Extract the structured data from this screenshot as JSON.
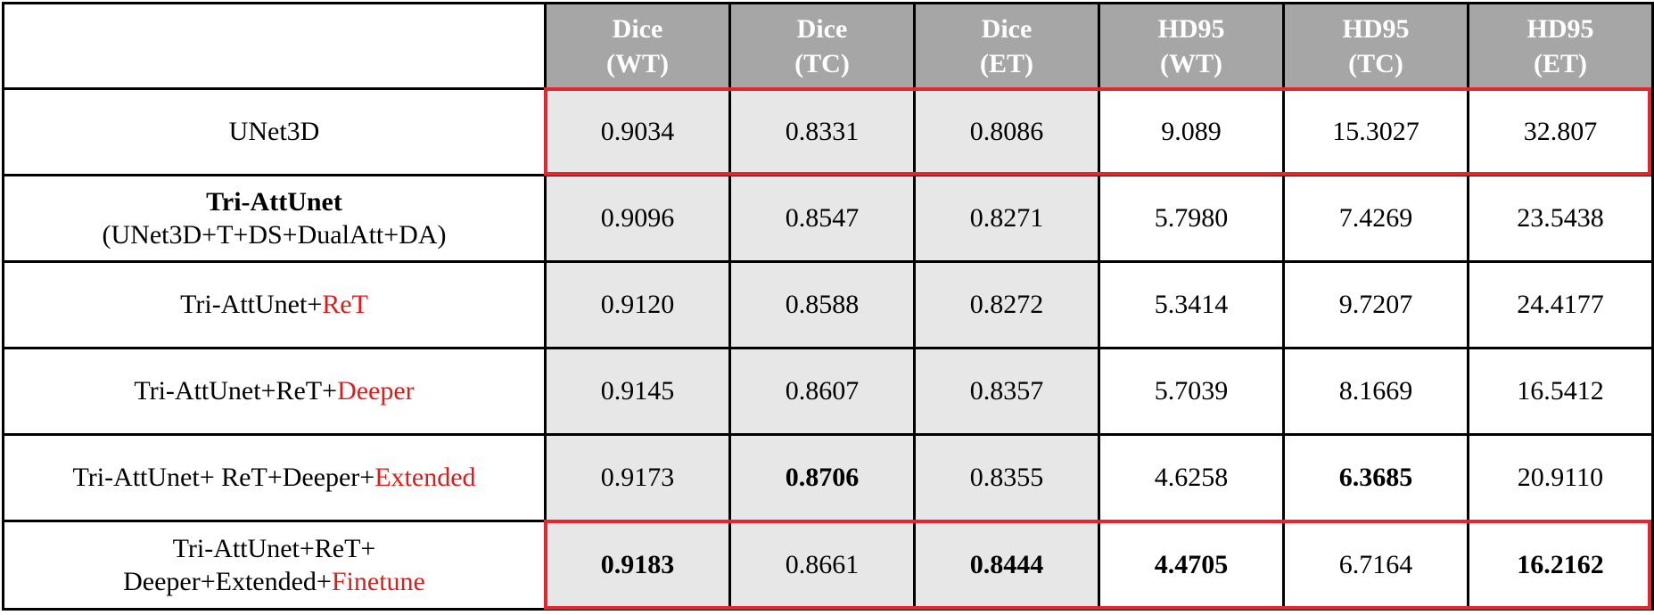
{
  "table": {
    "headers": [
      {
        "line1": "Dice",
        "line2": "(WT)"
      },
      {
        "line1": "Dice",
        "line2": "(TC)"
      },
      {
        "line1": "Dice",
        "line2": "(ET)"
      },
      {
        "line1": "HD95",
        "line2": "(WT)"
      },
      {
        "line1": "HD95",
        "line2": "(TC)"
      },
      {
        "line1": "HD95",
        "line2": "(ET)"
      }
    ],
    "rows": [
      {
        "method_parts": [
          {
            "text": "UNet3D",
            "style": "normal"
          }
        ],
        "values": [
          "0.9034",
          "0.8331",
          "0.8086",
          "9.089",
          "15.3027",
          "32.807"
        ],
        "bold": [
          false,
          false,
          false,
          false,
          false,
          false
        ]
      },
      {
        "method_line1": "Tri-AttUnet",
        "method_line2": "(UNet3D+T+DS+DualAtt+DA)",
        "values": [
          "0.9096",
          "0.8547",
          "0.8271",
          "5.7980",
          "7.4269",
          "23.5438"
        ],
        "bold": [
          false,
          false,
          false,
          false,
          false,
          false
        ]
      },
      {
        "method_prefix": "Tri-AttUnet+",
        "method_highlight": "ReT",
        "values": [
          "0.9120",
          "0.8588",
          "0.8272",
          "5.3414",
          "9.7207",
          "24.4177"
        ],
        "bold": [
          false,
          false,
          false,
          false,
          false,
          false
        ]
      },
      {
        "method_prefix": "Tri-AttUnet+ReT+",
        "method_highlight": "Deeper",
        "values": [
          "0.9145",
          "0.8607",
          "0.8357",
          "5.7039",
          "8.1669",
          "16.5412"
        ],
        "bold": [
          false,
          false,
          false,
          false,
          false,
          false
        ]
      },
      {
        "method_prefix": "Tri-AttUnet+ ReT+Deeper+",
        "method_highlight": "Extended",
        "values": [
          "0.9173",
          "0.8706",
          "0.8355",
          "4.6258",
          "6.3685",
          "20.9110"
        ],
        "bold": [
          false,
          true,
          false,
          false,
          true,
          false
        ]
      },
      {
        "method_line1": "Tri-AttUnet+ReT+",
        "method_prefix": "Deeper+Extended+",
        "method_highlight": "Finetune",
        "values": [
          "0.9183",
          "0.8661",
          "0.8444",
          "4.4705",
          "6.7164",
          "16.2162"
        ],
        "bold": [
          true,
          false,
          true,
          true,
          false,
          true
        ]
      }
    ]
  },
  "colors": {
    "header_bg": "#a6a6a6",
    "dice_bg": "#e7e7e7",
    "highlight_text": "#e01b1b",
    "box_border": "#e6262e"
  }
}
